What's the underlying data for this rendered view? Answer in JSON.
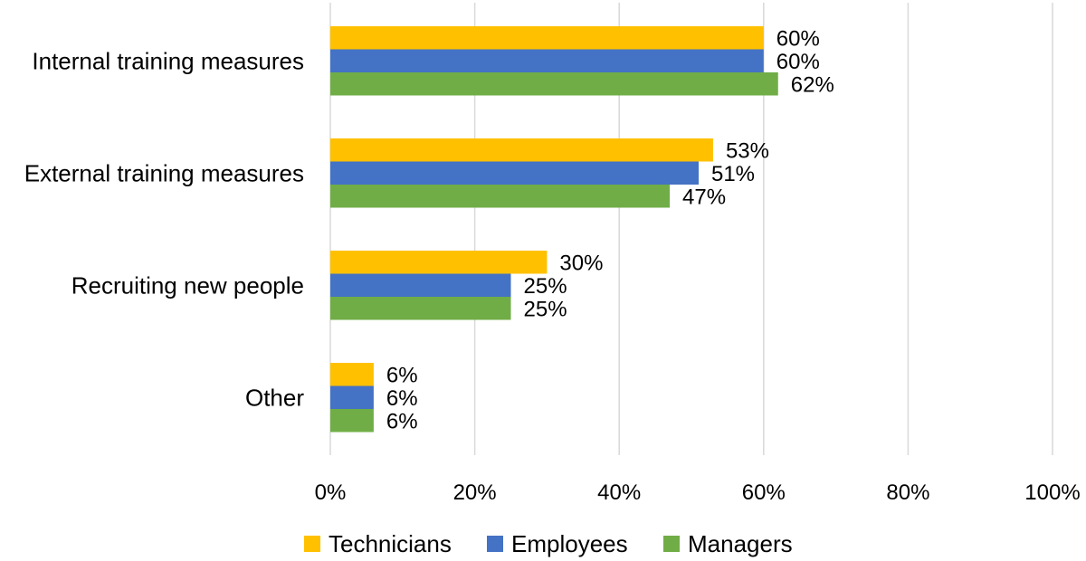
{
  "chart_data": {
    "type": "bar",
    "orientation": "horizontal",
    "categories": [
      "Internal training measures",
      "External training measures",
      "Recruiting new people",
      "Other"
    ],
    "series": [
      {
        "name": "Technicians",
        "color": "#FFC000",
        "values": [
          60,
          53,
          30,
          6
        ]
      },
      {
        "name": "Employees",
        "color": "#4472C4",
        "values": [
          60,
          51,
          25,
          6
        ]
      },
      {
        "name": "Managers",
        "color": "#70AD47",
        "values": [
          62,
          47,
          25,
          6
        ]
      }
    ],
    "data_labels": [
      [
        "60%",
        "53%",
        "30%",
        "6%"
      ],
      [
        "60%",
        "51%",
        "25%",
        "6%"
      ],
      [
        "62%",
        "47%",
        "25%",
        "6%"
      ]
    ],
    "xlim": [
      0,
      100
    ],
    "x_ticks": [
      0,
      20,
      40,
      60,
      80,
      100
    ],
    "x_tick_labels": [
      "0%",
      "20%",
      "40%",
      "60%",
      "80%",
      "100%"
    ],
    "title": "",
    "xlabel": "",
    "ylabel": "",
    "grid": "vertical",
    "legend_position": "bottom"
  }
}
